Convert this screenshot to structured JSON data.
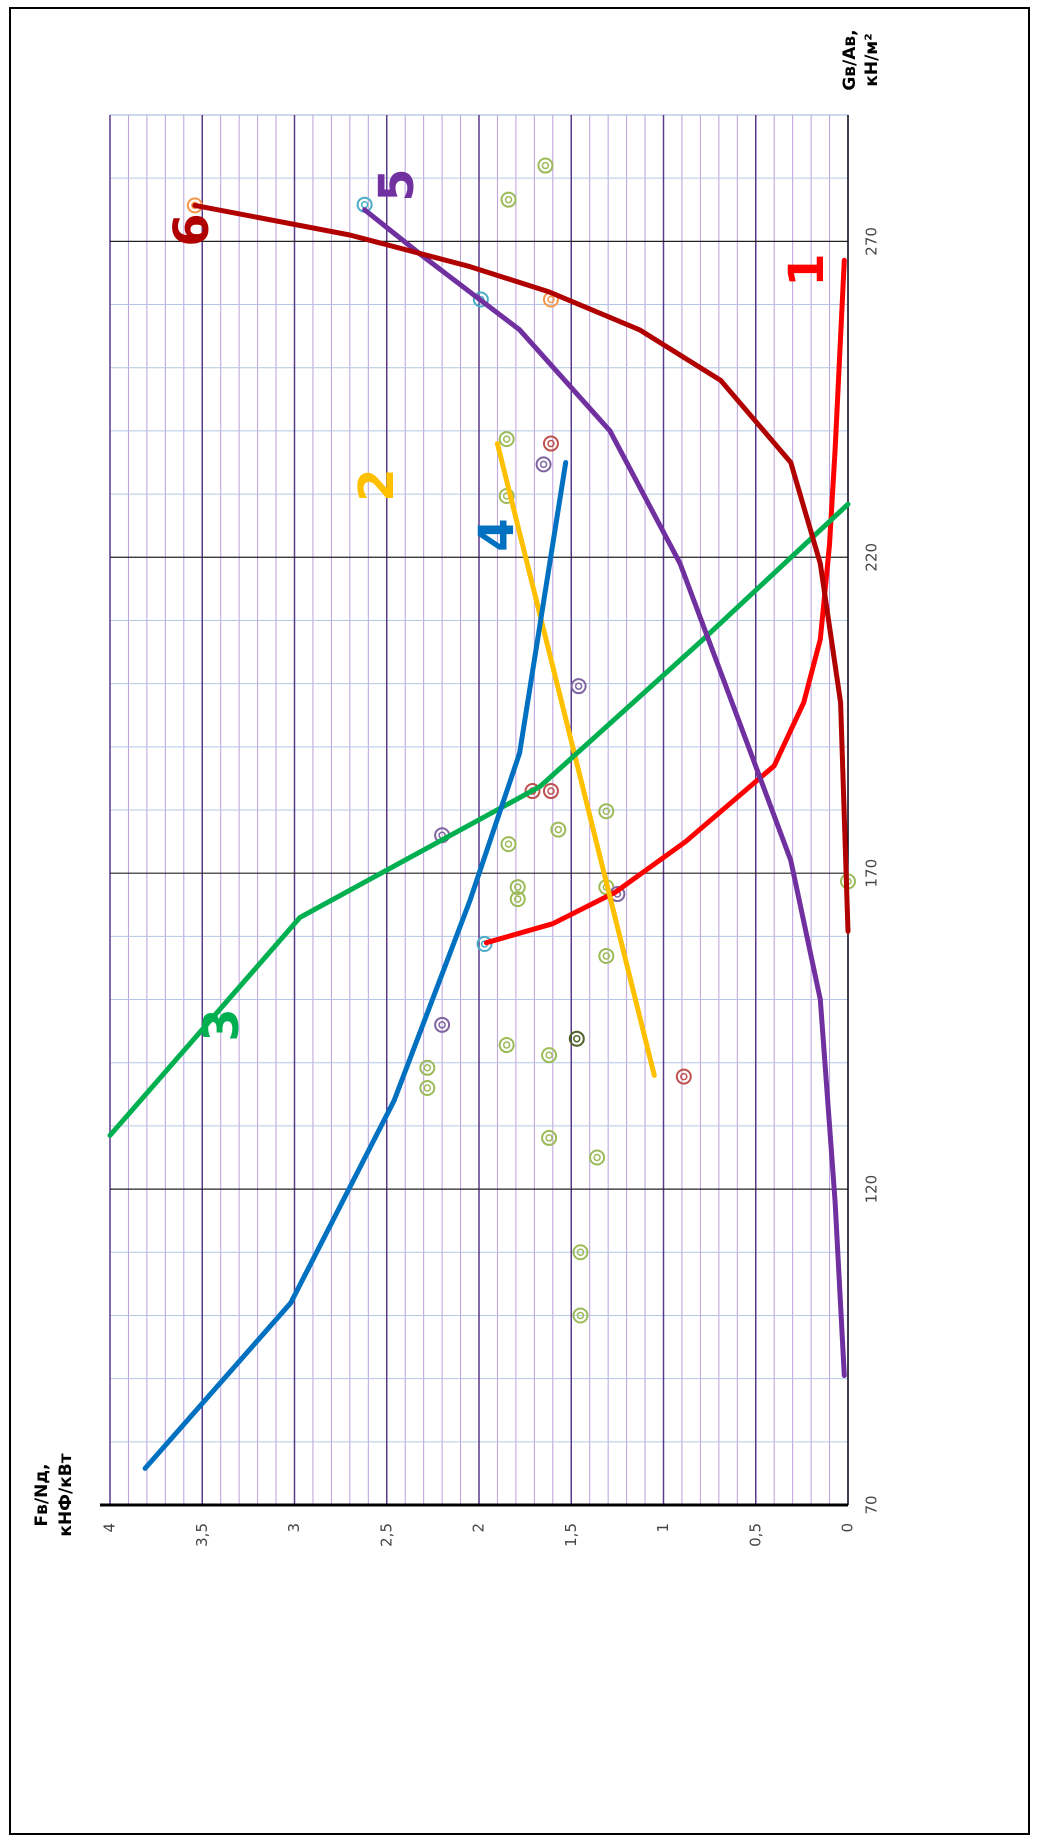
{
  "chart_data": {
    "type": "line",
    "xlabel": [
      "Gв/Aв,",
      "кН/м²"
    ],
    "ylabel": [
      "Fв/Nд,",
      "кНФ/кВт"
    ],
    "xlim": [
      70,
      290
    ],
    "xticks": [
      70,
      120,
      170,
      220,
      270
    ],
    "ylim": [
      0,
      4
    ],
    "yticks": [
      0,
      {
        "value": 0.5,
        "label": "0,5"
      },
      1,
      {
        "value": 1.5,
        "label": "1,5"
      },
      2,
      {
        "value": 2.5,
        "label": "2,5"
      },
      3,
      {
        "value": 3.5,
        "label": "3,5"
      },
      4
    ],
    "grid": true,
    "series": [
      {
        "name": "1",
        "color": "#ff0000",
        "x": [
          159,
          162,
          167,
          175,
          187,
          197,
          207,
          222,
          237,
          267
        ],
        "values": [
          1.96,
          1.6,
          1.26,
          0.88,
          0.4,
          0.24,
          0.15,
          0.1,
          0.07,
          0.02
        ]
      },
      {
        "name": "2",
        "color": "#ffc000",
        "x": [
          138,
          238
        ],
        "values": [
          1.05,
          1.9
        ]
      },
      {
        "name": "3",
        "color": "#00b050",
        "x": [
          128.5,
          163,
          183.7,
          206.6,
          228.4
        ],
        "values": [
          4.0,
          2.97,
          1.67,
          0.8,
          0
        ]
      },
      {
        "name": "4",
        "color": "#0070c0",
        "x": [
          75.8,
          102,
          134,
          165.6,
          189,
          235
        ],
        "values": [
          3.81,
          3.02,
          2.46,
          2.05,
          1.78,
          1.53
        ]
      },
      {
        "name": "5",
        "color": "#7030a0",
        "x": [
          90.5,
          118,
          150,
          172,
          194,
          219,
          240,
          256,
          268,
          275
        ],
        "values": [
          0.02,
          0.07,
          0.15,
          0.31,
          0.59,
          0.91,
          1.29,
          1.78,
          2.32,
          2.62
        ]
      },
      {
        "name": "6",
        "color": "#b00000",
        "x": [
          160.8,
          197,
          219,
          235,
          248,
          256,
          262,
          266,
          271,
          275.7
        ],
        "values": [
          0,
          0.04,
          0.15,
          0.31,
          0.69,
          1.13,
          1.62,
          2.05,
          2.7,
          3.54
        ]
      }
    ],
    "scatter": {
      "x": [
        276.6,
        282,
        275.8,
        275.7,
        260.8,
        260.8,
        238.7,
        238,
        234.7,
        229.7,
        199.6,
        183,
        183,
        179.8,
        176.9,
        176,
        174.6,
        167.8,
        165.9,
        167.8,
        166.7,
        168.7,
        158.8,
        156.9,
        146,
        142.8,
        143.8,
        141.2,
        139.2,
        136,
        137.8,
        128.1,
        125,
        110,
        100
      ],
      "values": [
        1.84,
        1.64,
        2.62,
        3.54,
        1.99,
        1.61,
        1.85,
        1.61,
        1.65,
        1.85,
        1.46,
        1.71,
        1.61,
        1.31,
        1.57,
        2.2,
        1.84,
        1.79,
        1.79,
        1.31,
        1.25,
        0,
        1.97,
        1.31,
        2.2,
        1.85,
        1.47,
        1.62,
        2.28,
        2.28,
        0.89,
        1.62,
        1.36,
        1.45,
        1.45
      ],
      "colors": [
        "#9bbb59",
        "#9bbb59",
        "#4bacc6",
        "#f79646",
        "#4bacc6",
        "#f79646",
        "#9bbb59",
        "#c0504d",
        "#8064a2",
        "#9bbb59",
        "#8064a2",
        "#c0504d",
        "#c0504d",
        "#9bbb59",
        "#9bbb59",
        "#8064a2",
        "#9bbb59",
        "#9bbb59",
        "#9bbb59",
        "#9bbb59",
        "#8064a2",
        "#9bbb59",
        "#4bacc6",
        "#9bbb59",
        "#8064a2",
        "#9bbb59",
        "#4f6228",
        "#9bbb59",
        "#9bbb59",
        "#9bbb59",
        "#c0504d",
        "#9bbb59",
        "#9bbb59",
        "#9bbb59",
        "#9bbb59"
      ]
    }
  }
}
